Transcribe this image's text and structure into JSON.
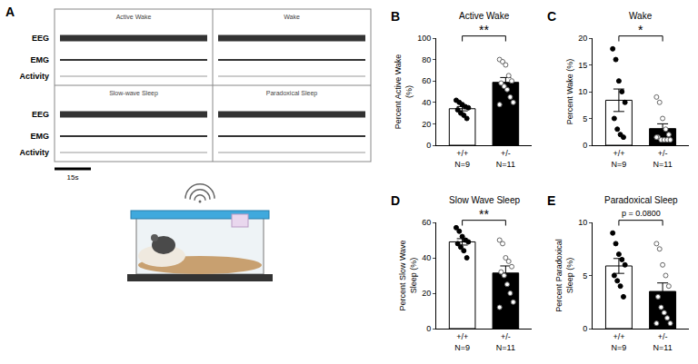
{
  "panel_a": {
    "letter": "A",
    "states": [
      "Active Wake",
      "Wake",
      "Slow-wave Sleep",
      "Paradoxical Sleep"
    ],
    "channels": [
      "EEG",
      "EMG",
      "Activity"
    ],
    "scale_bar": "15s"
  },
  "chart_data": [
    {
      "panel": "B",
      "type": "bar",
      "title": "Active Wake",
      "y_label": "Percent Active Wake (%)",
      "categories": [
        "+/+",
        "+/-"
      ],
      "category_notes": [
        "N=9",
        "N=11"
      ],
      "values": [
        34.1,
        58.7
      ],
      "sem": [
        2.0,
        4.5
      ],
      "points": [
        [
          42,
          40,
          38,
          36,
          35,
          33,
          30,
          28,
          25
        ],
        [
          80,
          78,
          75,
          65,
          60,
          58,
          55,
          52,
          45,
          40,
          38
        ]
      ],
      "colors": [
        "#ffffff",
        "#000000"
      ],
      "marker": "circle",
      "ylim": [
        0,
        100
      ],
      "yticks": [
        0,
        20,
        40,
        60,
        80,
        100
      ],
      "significance": "**"
    },
    {
      "panel": "C",
      "type": "bar",
      "title": "Wake",
      "y_label": "Percent Wake (%)",
      "categories": [
        "+/+",
        "+/-"
      ],
      "category_notes": [
        "N=9",
        "N=11"
      ],
      "values": [
        8.4,
        3.1
      ],
      "sem": [
        2.1,
        0.9
      ],
      "points": [
        [
          18,
          16,
          12,
          10,
          8,
          5,
          3,
          2,
          1.5
        ],
        [
          9,
          8,
          5,
          3,
          2,
          1.5,
          1,
          1,
          1,
          1,
          1.5
        ]
      ],
      "colors": [
        "#ffffff",
        "#000000"
      ],
      "marker": "circle",
      "ylim": [
        0,
        20
      ],
      "yticks": [
        0,
        5,
        10,
        15,
        20
      ],
      "significance": "*"
    },
    {
      "panel": "D",
      "type": "bar",
      "title": "Slow Wave Sleep",
      "y_label": "Percent Slow Wave Sleep (%)",
      "categories": [
        "+/+",
        "+/-"
      ],
      "category_notes": [
        "N=9",
        "N=11"
      ],
      "values": [
        49.0,
        31.4
      ],
      "sem": [
        1.8,
        4.0
      ],
      "points": [
        [
          57,
          55,
          52,
          50,
          49,
          48,
          46,
          44,
          40
        ],
        [
          50,
          48,
          40,
          38,
          35,
          32,
          30,
          25,
          20,
          15,
          12
        ]
      ],
      "colors": [
        "#ffffff",
        "#000000"
      ],
      "marker": "circle",
      "ylim": [
        0,
        60
      ],
      "yticks": [
        0,
        20,
        40,
        60
      ],
      "significance": "**"
    },
    {
      "panel": "E",
      "type": "bar",
      "title": "Paradoxical Sleep",
      "y_label": "Percent Paradoxical Sleep (%)",
      "categories": [
        "+/+",
        "+/-"
      ],
      "category_notes": [
        "N=9",
        "N=11"
      ],
      "values": [
        5.9,
        3.5
      ],
      "sem": [
        0.7,
        0.8
      ],
      "points": [
        [
          9,
          8,
          7,
          6.5,
          6,
          5,
          4.5,
          4,
          3
        ],
        [
          8,
          7.5,
          6,
          5,
          4,
          3,
          2,
          1.5,
          1,
          0.5,
          0.5
        ]
      ],
      "colors": [
        "#ffffff",
        "#000000"
      ],
      "marker": "circle",
      "ylim": [
        0,
        10
      ],
      "yticks": [
        0,
        5,
        10
      ],
      "significance": "p = 0.0800"
    }
  ]
}
